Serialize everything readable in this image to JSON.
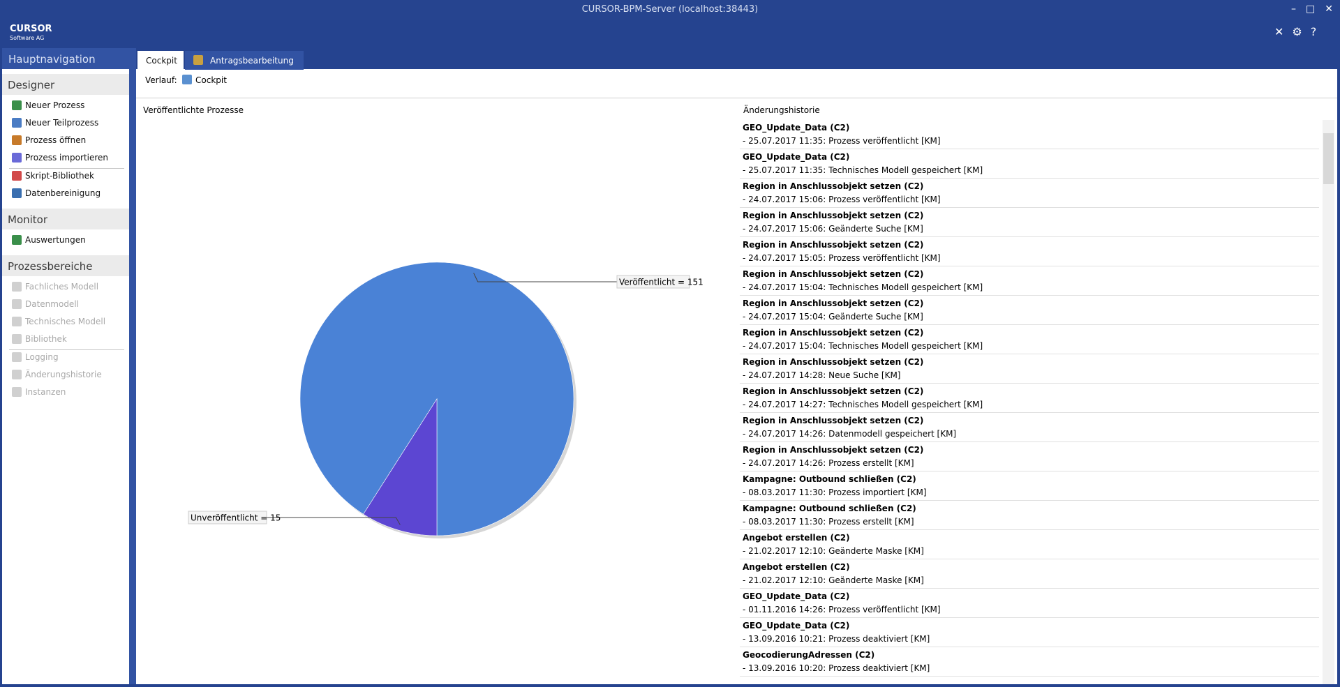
{
  "window": {
    "title": "CURSOR-BPM-Server (localhost:38443)"
  },
  "brand": {
    "name": "CURSOR",
    "sub": "Software AG"
  },
  "nav": {
    "title": "Hauptnavigation",
    "sections": [
      {
        "title": "Designer",
        "enabled": true,
        "groups": [
          [
            "Neuer Prozess",
            "Neuer Teilprozess",
            "Prozess öffnen",
            "Prozess importieren"
          ],
          [
            "Skript-Bibliothek",
            "Datenbereinigung"
          ]
        ]
      },
      {
        "title": "Monitor",
        "enabled": true,
        "groups": [
          [
            "Auswertungen"
          ]
        ]
      },
      {
        "title": "Prozessbereiche",
        "enabled": false,
        "groups": [
          [
            "Fachliches Modell",
            "Datenmodell",
            "Technisches Modell",
            "Bibliothek"
          ],
          [
            "Logging",
            "Änderungshistorie",
            "Instanzen"
          ]
        ]
      }
    ]
  },
  "tabs": [
    "Cockpit",
    "Antragsbearbeitung"
  ],
  "breadcrumb": {
    "label": "Verlauf:",
    "item": "Cockpit"
  },
  "chart_data": {
    "type": "pie",
    "title": "Veröffentlichte Prozesse",
    "values": [
      151,
      15
    ],
    "value_labels": [
      "Veröffentlicht = 151",
      "Unveröffentlicht = 15"
    ],
    "colors": [
      "#4a82d6",
      "#5c46d2"
    ]
  },
  "history": {
    "title": "Änderungshistorie",
    "items": [
      {
        "name": "GEO_Update_Data (C2)",
        "detail": " - 25.07.2017 11:35: Prozess veröffentlicht [KM]"
      },
      {
        "name": "GEO_Update_Data (C2)",
        "detail": " - 25.07.2017 11:35: Technisches Modell gespeichert [KM]"
      },
      {
        "name": "Region in Anschlussobjekt setzen (C2)",
        "detail": " - 24.07.2017 15:06: Prozess veröffentlicht [KM]"
      },
      {
        "name": "Region in Anschlussobjekt setzen (C2)",
        "detail": " - 24.07.2017 15:06: Geänderte Suche [KM]"
      },
      {
        "name": "Region in Anschlussobjekt setzen (C2)",
        "detail": " - 24.07.2017 15:05: Prozess veröffentlicht [KM]"
      },
      {
        "name": "Region in Anschlussobjekt setzen (C2)",
        "detail": " - 24.07.2017 15:04: Technisches Modell gespeichert [KM]"
      },
      {
        "name": "Region in Anschlussobjekt setzen (C2)",
        "detail": " - 24.07.2017 15:04: Geänderte Suche [KM]"
      },
      {
        "name": "Region in Anschlussobjekt setzen (C2)",
        "detail": " - 24.07.2017 15:04: Technisches Modell gespeichert [KM]"
      },
      {
        "name": "Region in Anschlussobjekt setzen (C2)",
        "detail": " - 24.07.2017 14:28: Neue Suche [KM]"
      },
      {
        "name": "Region in Anschlussobjekt setzen (C2)",
        "detail": " - 24.07.2017 14:27: Technisches Modell gespeichert [KM]"
      },
      {
        "name": "Region in Anschlussobjekt setzen (C2)",
        "detail": " - 24.07.2017 14:26: Datenmodell gespeichert [KM]"
      },
      {
        "name": "Region in Anschlussobjekt setzen (C2)",
        "detail": " - 24.07.2017 14:26: Prozess erstellt [KM]"
      },
      {
        "name": "Kampagne: Outbound schließen (C2)",
        "detail": " - 08.03.2017 11:30: Prozess importiert [KM]"
      },
      {
        "name": "Kampagne: Outbound schließen (C2)",
        "detail": " - 08.03.2017 11:30: Prozess erstellt [KM]"
      },
      {
        "name": "Angebot erstellen (C2)",
        "detail": " - 21.02.2017 12:10: Geänderte Maske [KM]"
      },
      {
        "name": "Angebot erstellen (C2)",
        "detail": " - 21.02.2017 12:10: Geänderte Maske [KM]"
      },
      {
        "name": "GEO_Update_Data (C2)",
        "detail": " - 01.11.2016 14:26: Prozess veröffentlicht [KM]"
      },
      {
        "name": "GEO_Update_Data (C2)",
        "detail": " - 13.09.2016 10:21: Prozess deaktiviert [KM]"
      },
      {
        "name": "GeocodierungAdressen (C2)",
        "detail": " - 13.09.2016 10:20: Prozess deaktiviert [KM]"
      }
    ]
  }
}
